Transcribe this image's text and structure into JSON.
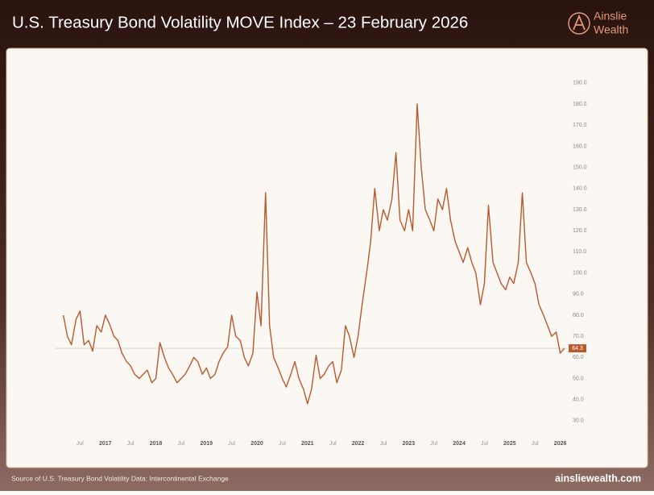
{
  "chart_data": {
    "type": "line",
    "title": "U.S. Treasury Bond Volatility MOVE Index – 23 February 2026",
    "color": "#b8592f",
    "x": [
      2016.17,
      2016.25,
      2016.33,
      2016.42,
      2016.5,
      2016.58,
      2016.67,
      2016.75,
      2016.83,
      2016.92,
      2017.0,
      2017.08,
      2017.17,
      2017.25,
      2017.33,
      2017.42,
      2017.5,
      2017.58,
      2017.67,
      2017.75,
      2017.83,
      2017.92,
      2018.0,
      2018.08,
      2018.17,
      2018.25,
      2018.33,
      2018.42,
      2018.5,
      2018.58,
      2018.67,
      2018.75,
      2018.83,
      2018.92,
      2019.0,
      2019.08,
      2019.17,
      2019.25,
      2019.33,
      2019.42,
      2019.5,
      2019.58,
      2019.67,
      2019.75,
      2019.83,
      2019.92,
      2020.0,
      2020.08,
      2020.17,
      2020.25,
      2020.33,
      2020.42,
      2020.5,
      2020.58,
      2020.67,
      2020.75,
      2020.83,
      2020.92,
      2021.0,
      2021.08,
      2021.17,
      2021.25,
      2021.33,
      2021.42,
      2021.5,
      2021.58,
      2021.67,
      2021.75,
      2021.83,
      2021.92,
      2022.0,
      2022.08,
      2022.17,
      2022.25,
      2022.33,
      2022.42,
      2022.5,
      2022.58,
      2022.67,
      2022.75,
      2022.83,
      2022.92,
      2023.0,
      2023.08,
      2023.17,
      2023.25,
      2023.33,
      2023.42,
      2023.5,
      2023.58,
      2023.67,
      2023.75,
      2023.83,
      2023.92,
      2024.0,
      2024.08,
      2024.17,
      2024.25,
      2024.33,
      2024.42,
      2024.5,
      2024.58,
      2024.67,
      2024.75,
      2024.83,
      2024.92,
      2025.0,
      2025.08,
      2025.17,
      2025.25,
      2025.33,
      2025.42,
      2025.5,
      2025.58,
      2025.67,
      2025.75,
      2025.83,
      2025.92,
      2026.0,
      2026.08
    ],
    "values": [
      80,
      70,
      66,
      78,
      82,
      66,
      68,
      63,
      75,
      72,
      80,
      76,
      70,
      68,
      62,
      58,
      56,
      52,
      50,
      52,
      54,
      48,
      50,
      67,
      60,
      55,
      52,
      48,
      50,
      52,
      56,
      60,
      58,
      52,
      55,
      50,
      52,
      58,
      62,
      65,
      80,
      70,
      68,
      60,
      56,
      62,
      91,
      75,
      138,
      75,
      60,
      55,
      50,
      46,
      52,
      58,
      50,
      45,
      38,
      45,
      61,
      50,
      52,
      56,
      58,
      48,
      54,
      75,
      70,
      60,
      70,
      85,
      100,
      115,
      140,
      120,
      130,
      125,
      135,
      157,
      125,
      120,
      130,
      120,
      180,
      150,
      130,
      125,
      120,
      135,
      130,
      140,
      125,
      115,
      110,
      105,
      112,
      105,
      100,
      85,
      95,
      132,
      105,
      100,
      95,
      92,
      98,
      95,
      105,
      138,
      105,
      100,
      95,
      85,
      80,
      75,
      70,
      72,
      62,
      64.3
    ],
    "current_value": 64.3,
    "xlim": [
      2016.0,
      2026.15
    ],
    "xticks": [
      {
        "value": 2016.5,
        "label": "Jul"
      },
      2017,
      {
        "value": 2017.5,
        "label": "Jul"
      },
      2018,
      {
        "value": 2018.5,
        "label": "Jul"
      },
      2019,
      {
        "value": 2019.5,
        "label": "Jul"
      },
      2020,
      {
        "value": 2020.5,
        "label": "Jul"
      },
      2021,
      {
        "value": 2021.5,
        "label": "Jul"
      },
      2022,
      {
        "value": 2022.5,
        "label": "Jul"
      },
      2023,
      {
        "value": 2023.5,
        "label": "Jul"
      },
      2024,
      {
        "value": 2024.5,
        "label": "Jul"
      },
      2025,
      {
        "value": 2025.5,
        "label": "Jul"
      },
      2026
    ],
    "ylim": [
      25,
      193
    ],
    "yticks": [
      {
        "value": 30,
        "label": "30.0"
      },
      {
        "value": 40,
        "label": "40.0"
      },
      {
        "value": 50,
        "label": "50.0"
      },
      {
        "value": 60,
        "label": "60.0"
      },
      {
        "value": 70,
        "label": "70.0"
      },
      {
        "value": 80,
        "label": "80.0"
      },
      {
        "value": 90,
        "label": "90.0"
      },
      {
        "value": 100,
        "label": "100.0"
      },
      {
        "value": 110,
        "label": "110.0"
      },
      {
        "value": 120,
        "label": "120.0"
      },
      {
        "value": 130,
        "label": "130.0"
      },
      {
        "value": 140,
        "label": "140.0"
      },
      {
        "value": 150,
        "label": "150.0"
      },
      {
        "value": 160,
        "label": "160.0"
      },
      {
        "value": 170,
        "label": "170.0"
      },
      {
        "value": 180,
        "label": "180.0"
      },
      {
        "value": 190,
        "label": "190.0"
      }
    ],
    "grid": false
  },
  "brand": {
    "line1": "Ainslie",
    "line2": "Wealth"
  },
  "footer": {
    "source": "Source of U.S. Treasury Bond Volatility Data: Intercontinental Exchange",
    "website": "ainsliewealth.com"
  }
}
